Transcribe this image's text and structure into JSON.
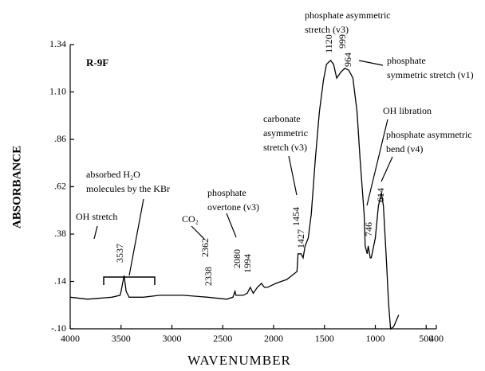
{
  "chart_data": {
    "type": "line",
    "x_label": "WAVENUMBER",
    "y_label": "ABSORBANCE",
    "sample": "R-9F",
    "xlim": [
      4000,
      400
    ],
    "ylim": [
      -0.1,
      1.34
    ],
    "xticks": [
      4000,
      3500,
      3000,
      2500,
      2000,
      1500,
      1000,
      500,
      400
    ],
    "yticks": [
      {
        "value": -0.1,
        "label": "-.10"
      },
      {
        "value": 0.14,
        "label": ".14"
      },
      {
        "value": 0.38,
        "label": ".38"
      },
      {
        "value": 0.62,
        "label": ".62"
      },
      {
        "value": 0.86,
        "label": ".86"
      },
      {
        "value": 1.1,
        "label": "1.10"
      },
      1.34
    ],
    "series": [
      {
        "color": "#000000",
        "x": [
          4000,
          3830,
          3590,
          3510,
          3500,
          3470,
          3450,
          3420,
          3280,
          3120,
          2890,
          2650,
          2460,
          2400,
          2380,
          2370,
          2300,
          2260,
          2230,
          2200,
          2160,
          2120,
          2090,
          2060,
          1980,
          1870,
          1770,
          1760,
          1730,
          1710,
          1690,
          1660,
          1630,
          1590,
          1550,
          1510,
          1480,
          1440,
          1410,
          1380,
          1340,
          1300,
          1260,
          1220,
          1180,
          1150,
          1110,
          1100,
          1080,
          1070,
          1050,
          1040,
          1000,
          970,
          940,
          920,
          890,
          870,
          850,
          820,
          770
        ],
        "values": [
          0.06,
          0.05,
          0.06,
          0.07,
          0.09,
          0.17,
          0.09,
          0.06,
          0.06,
          0.07,
          0.07,
          0.06,
          0.05,
          0.06,
          0.09,
          0.07,
          0.07,
          0.08,
          0.11,
          0.08,
          0.11,
          0.13,
          0.11,
          0.11,
          0.13,
          0.15,
          0.19,
          0.28,
          0.28,
          0.26,
          0.32,
          0.36,
          0.48,
          0.76,
          1.0,
          1.16,
          1.24,
          1.26,
          1.24,
          1.17,
          1.2,
          1.22,
          1.21,
          1.17,
          1.0,
          0.76,
          0.48,
          0.32,
          0.28,
          0.32,
          0.26,
          0.26,
          0.36,
          0.52,
          0.59,
          0.52,
          0.24,
          0.03,
          -0.1,
          -0.09,
          -0.03
        ]
      }
    ],
    "peak_labels": [
      "3537",
      "2362",
      "2338",
      "2080",
      "1994",
      "1454",
      "1427",
      "1120",
      "999",
      "964",
      "746",
      "614"
    ],
    "annotations": [
      [
        "OH stretch"
      ],
      [
        "absorbed H₂O",
        "molecules by the KBr"
      ],
      [
        "CO₂"
      ],
      [
        "phosphate",
        "overtone (v3)"
      ],
      [
        "carbonate",
        "asymmetric",
        "stretch (v3)"
      ],
      [
        "phosphate asymmetric",
        "stretch (v3)"
      ],
      [
        "phosphate",
        "symmetric stretch (v1)"
      ],
      [
        "OH libration"
      ],
      [
        "phosphate asymmetric",
        "bend (v4)"
      ]
    ]
  }
}
